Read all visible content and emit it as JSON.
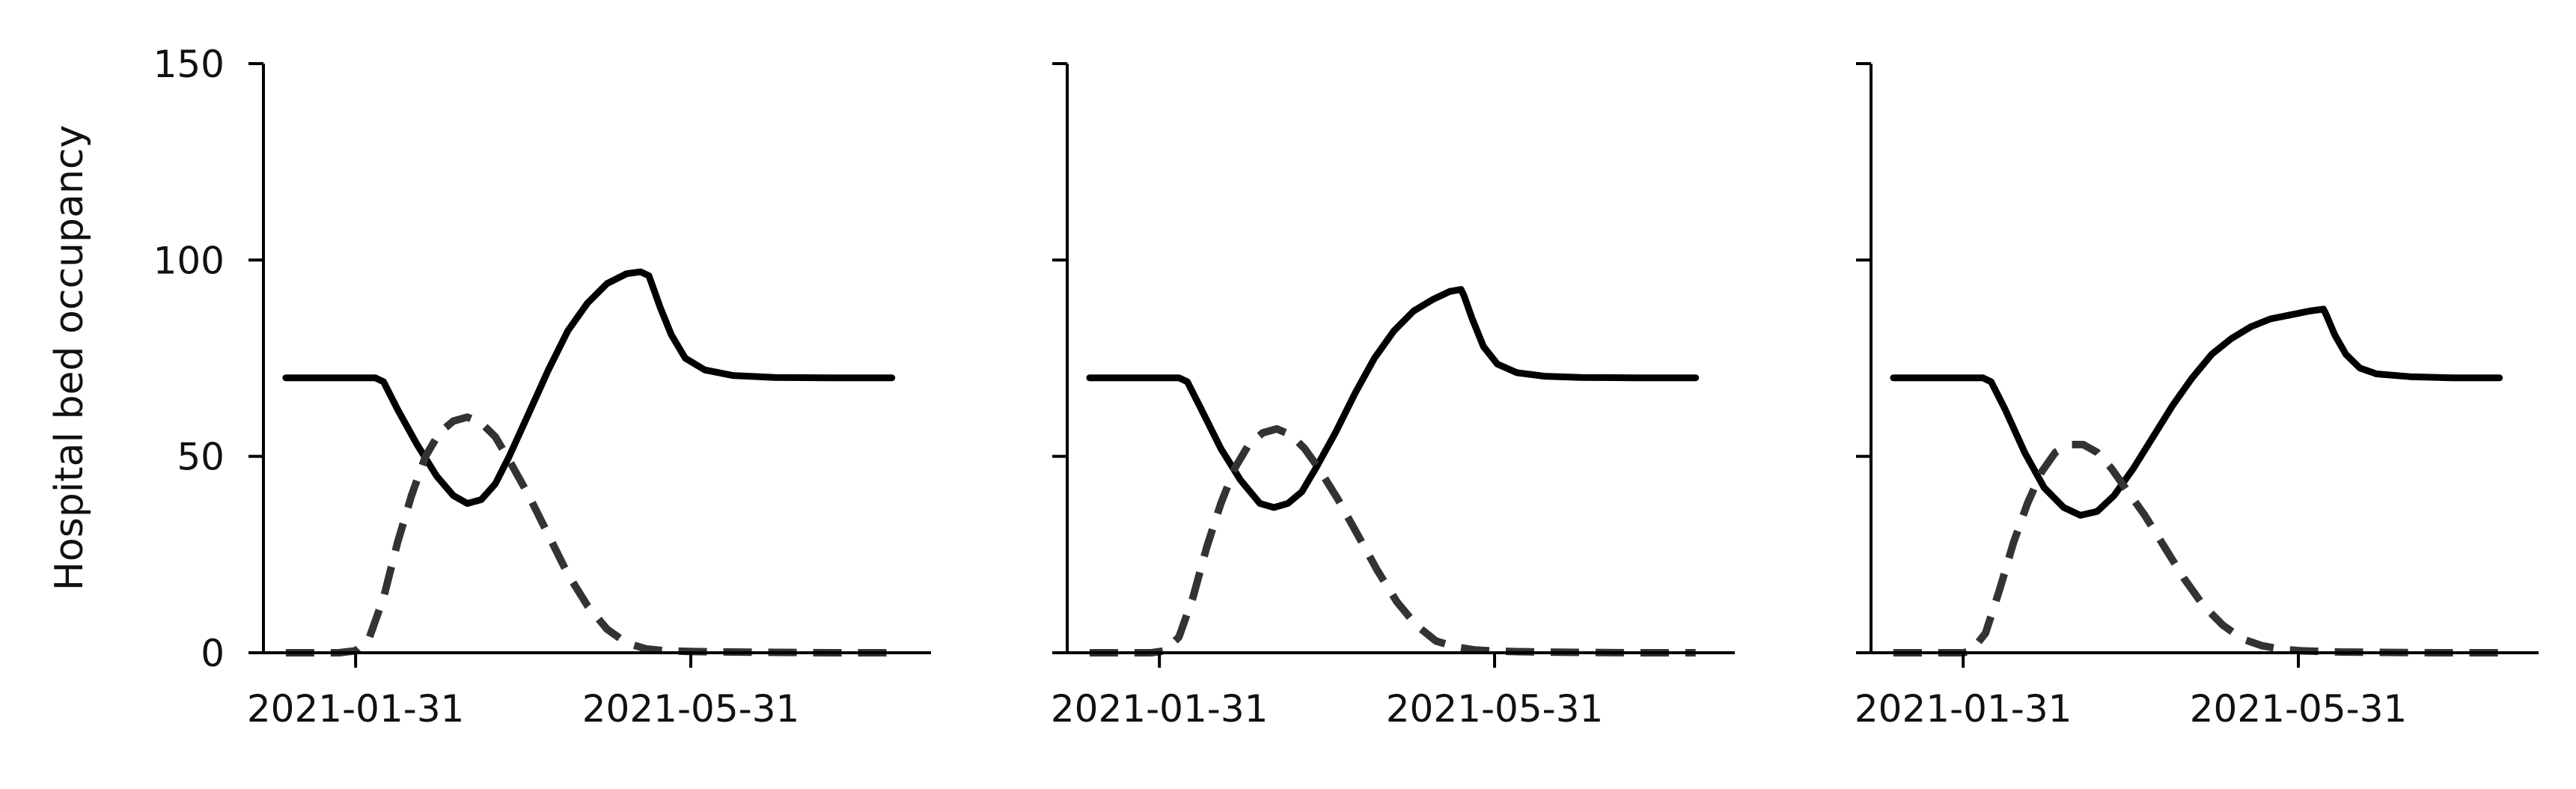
{
  "chart_data": [
    {
      "type": "line",
      "title": "",
      "xlabel": "",
      "ylabel": "Hospital bed occupancy",
      "ylim": [
        0,
        150
      ],
      "xlim": [
        "2020-12-29",
        "2021-08-25"
      ],
      "yticks": [
        0,
        50,
        100,
        150
      ],
      "xticks": [
        "2021-01-31",
        "2021-05-31"
      ],
      "grid": false,
      "series": [
        {
          "style": "solid",
          "color": "#000000",
          "x": [
            "2021-01-06",
            "2021-01-20",
            "2021-02-07",
            "2021-02-10",
            "2021-02-15",
            "2021-02-22",
            "2021-03-01",
            "2021-03-07",
            "2021-03-12",
            "2021-03-17",
            "2021-03-22",
            "2021-03-27",
            "2021-04-03",
            "2021-04-10",
            "2021-04-17",
            "2021-04-24",
            "2021-05-01",
            "2021-05-08",
            "2021-05-13",
            "2021-05-16",
            "2021-05-17",
            "2021-05-20",
            "2021-05-24",
            "2021-05-29",
            "2021-06-05",
            "2021-06-15",
            "2021-06-30",
            "2021-07-20",
            "2021-08-11"
          ],
          "y": [
            70,
            70,
            70,
            69,
            62,
            53,
            45,
            40,
            38,
            39,
            43,
            50,
            61,
            72,
            82,
            89,
            94,
            96.5,
            97,
            96,
            94,
            88,
            81,
            75,
            72,
            70.6,
            70.1,
            70,
            70
          ]
        },
        {
          "style": "dashed",
          "color": "#333333",
          "x": [
            "2021-01-06",
            "2021-01-25",
            "2021-01-31",
            "2021-02-05",
            "2021-02-10",
            "2021-02-15",
            "2021-02-20",
            "2021-02-25",
            "2021-03-02",
            "2021-03-07",
            "2021-03-12",
            "2021-03-17",
            "2021-03-22",
            "2021-03-27",
            "2021-04-03",
            "2021-04-10",
            "2021-04-17",
            "2021-04-24",
            "2021-05-01",
            "2021-05-08",
            "2021-05-15",
            "2021-05-22",
            "2021-06-01",
            "2021-06-15",
            "2021-07-01",
            "2021-07-20",
            "2021-08-11"
          ],
          "y": [
            0,
            0,
            0.5,
            4,
            14,
            28,
            40,
            50,
            56,
            59,
            60,
            58.5,
            55,
            49,
            40,
            30,
            20,
            12,
            6,
            2.5,
            1,
            0.5,
            0.3,
            0.2,
            0.1,
            0,
            0
          ]
        }
      ]
    },
    {
      "type": "line",
      "title": "",
      "xlabel": "",
      "ylabel": "",
      "ylim": [
        0,
        150
      ],
      "xlim": [
        "2020-12-29",
        "2021-08-25"
      ],
      "yticks": [
        0,
        50,
        100,
        150
      ],
      "xticks": [
        "2021-01-31",
        "2021-05-31"
      ],
      "grid": false,
      "series": [
        {
          "style": "solid",
          "color": "#000000",
          "x": [
            "2021-01-06",
            "2021-01-20",
            "2021-02-07",
            "2021-02-10",
            "2021-02-15",
            "2021-02-22",
            "2021-03-01",
            "2021-03-08",
            "2021-03-13",
            "2021-03-18",
            "2021-03-23",
            "2021-03-28",
            "2021-04-04",
            "2021-04-11",
            "2021-04-18",
            "2021-04-25",
            "2021-05-02",
            "2021-05-09",
            "2021-05-15",
            "2021-05-19",
            "2021-05-20",
            "2021-05-23",
            "2021-05-27",
            "2021-06-01",
            "2021-06-08",
            "2021-06-18",
            "2021-07-01",
            "2021-07-20",
            "2021-08-11"
          ],
          "y": [
            70,
            70,
            70,
            69,
            62,
            52,
            44,
            38,
            37,
            38,
            41,
            47,
            56,
            66,
            75,
            82,
            87,
            90,
            92,
            92.5,
            91,
            85,
            78,
            73.5,
            71.3,
            70.4,
            70.1,
            70,
            70
          ]
        },
        {
          "style": "dashed",
          "color": "#333333",
          "x": [
            "2021-01-06",
            "2021-01-28",
            "2021-02-02",
            "2021-02-07",
            "2021-02-12",
            "2021-02-17",
            "2021-02-22",
            "2021-02-27",
            "2021-03-04",
            "2021-03-09",
            "2021-03-14",
            "2021-03-19",
            "2021-03-24",
            "2021-03-29",
            "2021-04-05",
            "2021-04-12",
            "2021-04-19",
            "2021-04-26",
            "2021-05-03",
            "2021-05-10",
            "2021-05-17",
            "2021-05-24",
            "2021-06-01",
            "2021-06-15",
            "2021-07-01",
            "2021-07-20",
            "2021-08-11"
          ],
          "y": [
            0,
            0,
            0.5,
            4,
            14,
            27,
            38,
            47,
            53,
            56,
            57,
            55.5,
            52,
            47,
            39,
            30,
            21,
            13,
            7,
            3,
            1.5,
            0.7,
            0.4,
            0.2,
            0.1,
            0,
            0
          ]
        }
      ]
    },
    {
      "type": "line",
      "title": "",
      "xlabel": "",
      "ylabel": "",
      "ylim": [
        0,
        150
      ],
      "xlim": [
        "2020-12-29",
        "2021-08-25"
      ],
      "yticks": [
        0,
        50,
        100,
        150
      ],
      "xticks": [
        "2021-01-31",
        "2021-05-31"
      ],
      "grid": false,
      "series": [
        {
          "style": "solid",
          "color": "#000000",
          "x": [
            "2021-01-06",
            "2021-01-20",
            "2021-02-07",
            "2021-02-10",
            "2021-02-15",
            "2021-02-22",
            "2021-03-01",
            "2021-03-08",
            "2021-03-14",
            "2021-03-20",
            "2021-03-26",
            "2021-04-02",
            "2021-04-09",
            "2021-04-16",
            "2021-04-23",
            "2021-04-30",
            "2021-05-07",
            "2021-05-14",
            "2021-05-21",
            "2021-05-28",
            "2021-06-04",
            "2021-06-09",
            "2021-06-10",
            "2021-06-13",
            "2021-06-17",
            "2021-06-22",
            "2021-06-28",
            "2021-07-10",
            "2021-07-25",
            "2021-08-11"
          ],
          "y": [
            70,
            70,
            70,
            69,
            62,
            51,
            42,
            37,
            35,
            36,
            40,
            47,
            55,
            63,
            70,
            76,
            80,
            83,
            85,
            86,
            87,
            87.5,
            86,
            81,
            76,
            72.5,
            71,
            70.3,
            70,
            70
          ]
        },
        {
          "style": "dashed",
          "color": "#333333",
          "x": [
            "2021-01-06",
            "2021-01-31",
            "2021-02-03",
            "2021-02-08",
            "2021-02-13",
            "2021-02-18",
            "2021-02-23",
            "2021-02-28",
            "2021-03-05",
            "2021-03-10",
            "2021-03-15",
            "2021-03-20",
            "2021-03-25",
            "2021-03-30",
            "2021-04-06",
            "2021-04-13",
            "2021-04-20",
            "2021-04-27",
            "2021-05-04",
            "2021-05-11",
            "2021-05-18",
            "2021-05-25",
            "2021-06-01",
            "2021-06-15",
            "2021-07-01",
            "2021-07-20",
            "2021-08-11"
          ],
          "y": [
            0,
            0,
            0.5,
            5,
            16,
            28,
            38,
            46,
            51,
            53,
            53,
            51,
            47,
            42,
            35,
            27,
            19,
            12,
            7,
            3.5,
            1.8,
            0.9,
            0.5,
            0.2,
            0.1,
            0,
            0
          ]
        }
      ]
    }
  ]
}
